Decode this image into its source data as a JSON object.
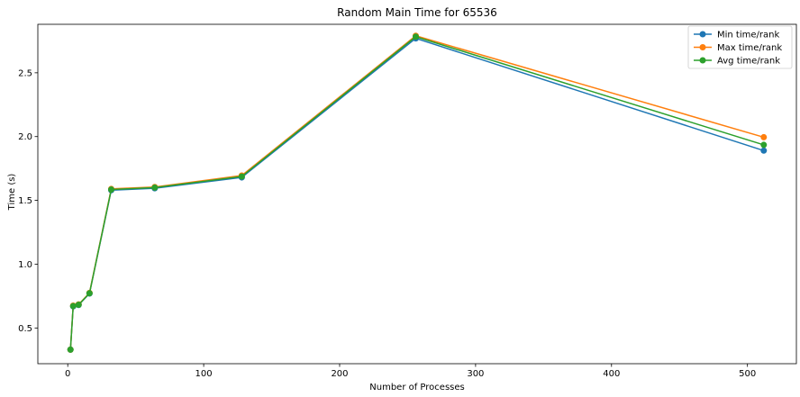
{
  "chart_data": {
    "type": "line",
    "title": "Random Main Time for 65536",
    "xlabel": "Number of Processes",
    "ylabel": "Time (s)",
    "xlim": [
      -22,
      536
    ],
    "ylim": [
      0.22,
      2.88
    ],
    "xticks": [
      0,
      100,
      200,
      300,
      400,
      500
    ],
    "yticks": [
      0.5,
      1.0,
      1.5,
      2.0,
      2.5
    ],
    "xtick_labels": [
      "0",
      "100",
      "200",
      "300",
      "400",
      "500"
    ],
    "ytick_labels": [
      "0.5",
      "1.0",
      "1.5",
      "2.0",
      "2.5"
    ],
    "grid": false,
    "legend": "top-right",
    "x": [
      2,
      4,
      8,
      16,
      32,
      64,
      128,
      256,
      512
    ],
    "series": [
      {
        "name": "Min time/rank",
        "color": "#1f77b4",
        "values": [
          0.33,
          0.67,
          0.68,
          0.77,
          1.58,
          1.595,
          1.68,
          2.77,
          1.89
        ]
      },
      {
        "name": "Max time/rank",
        "color": "#ff7f0e",
        "values": [
          0.33,
          0.675,
          0.685,
          0.775,
          1.59,
          1.605,
          1.695,
          2.79,
          1.995
        ]
      },
      {
        "name": "Avg time/rank",
        "color": "#2ca02c",
        "values": [
          0.33,
          0.672,
          0.682,
          0.772,
          1.585,
          1.6,
          1.687,
          2.783,
          1.935
        ]
      }
    ]
  }
}
